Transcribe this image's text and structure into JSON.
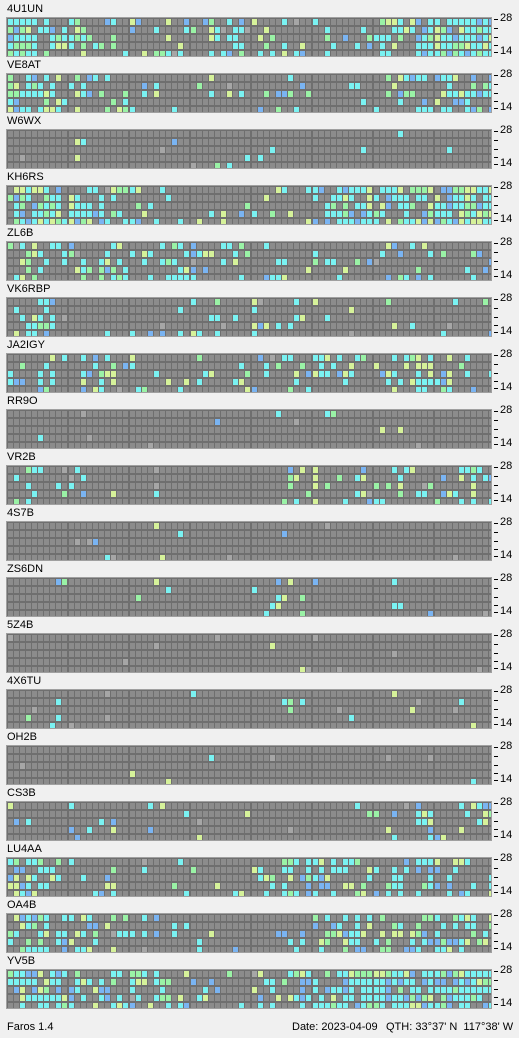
{
  "scale": {
    "top_label": "28",
    "bottom_label": "14"
  },
  "colors": {
    "cell": "#8c8c8c",
    "cyan": "#7af2f2",
    "blue": "#7ab4f2",
    "green": "#9af2a6",
    "yellow": "#d6f29a",
    "gray": "#a6a6a6"
  },
  "stations": [
    {
      "call": "4U1UN",
      "activity": [
        0.95,
        0.55,
        0.5,
        0.4,
        0.25,
        0.3,
        0.2,
        0.3,
        0.35,
        0.3,
        0.25,
        0.3,
        0.35,
        0.4,
        0.5,
        0.85,
        0.95,
        1.0
      ]
    },
    {
      "call": "VE8AT",
      "activity": [
        0.5,
        0.55,
        0.4,
        0.3,
        0.2,
        0.1,
        0.1,
        0.1,
        0.1,
        0.05,
        0.1,
        0.1,
        0.15,
        0.2,
        0.2,
        0.3,
        0.5,
        0.6
      ]
    },
    {
      "call": "W6WX",
      "activity": [
        0.03,
        0.03,
        0.05,
        0.03,
        0.03,
        0.02,
        0.02,
        0.03,
        0.05,
        0.03,
        0.02,
        0.02,
        0.03,
        0.03,
        0.03,
        0.02,
        0.02,
        0.02
      ]
    },
    {
      "call": "KH6RS",
      "activity": [
        0.8,
        0.85,
        0.7,
        0.5,
        0.3,
        0.2,
        0.15,
        0.15,
        0.15,
        0.15,
        0.2,
        0.4,
        0.75,
        0.85,
        0.8,
        0.85,
        0.9,
        0.85
      ]
    },
    {
      "call": "ZL6B",
      "activity": [
        0.4,
        0.35,
        0.55,
        0.45,
        0.4,
        0.25,
        0.45,
        0.35,
        0.3,
        0.25,
        0.2,
        0.15,
        0.15,
        0.1,
        0.25,
        0.2,
        0.15,
        0.1
      ]
    },
    {
      "call": "VK6RBP",
      "activity": [
        0.3,
        0.35,
        0.2,
        0.1,
        0.1,
        0.15,
        0.2,
        0.25,
        0.2,
        0.2,
        0.25,
        0.2,
        0.1,
        0.05,
        0.05,
        0.05,
        0.05,
        0.05
      ]
    },
    {
      "call": "JA2IGY",
      "activity": [
        0.3,
        0.35,
        0.3,
        0.25,
        0.15,
        0.1,
        0.15,
        0.15,
        0.15,
        0.2,
        0.35,
        0.3,
        0.35,
        0.35,
        0.3,
        0.55,
        0.4,
        0.2
      ]
    },
    {
      "call": "RR9O",
      "activity": [
        0.02,
        0.02,
        0.03,
        0.02,
        0.02,
        0.02,
        0.03,
        0.02,
        0.03,
        0.03,
        0.02,
        0.04,
        0.02,
        0.02,
        0.02,
        0.02,
        0.02,
        0.02
      ]
    },
    {
      "call": "VR2B",
      "activity": [
        0.4,
        0.2,
        0.25,
        0.1,
        0.05,
        0.05,
        0.05,
        0.05,
        0.05,
        0.05,
        0.2,
        0.35,
        0.35,
        0.3,
        0.3,
        0.2,
        0.3,
        0.45
      ]
    },
    {
      "call": "4S7B",
      "activity": [
        0.01,
        0.01,
        0.01,
        0.01,
        0.01,
        0.01,
        0.01,
        0.01,
        0.01,
        0.03,
        0.01,
        0.01,
        0.01,
        0.01,
        0.01,
        0.01,
        0.01,
        0.01
      ]
    },
    {
      "call": "ZS6DN",
      "activity": [
        0.02,
        0.02,
        0.02,
        0.02,
        0.02,
        0.02,
        0.02,
        0.02,
        0.02,
        0.25,
        0.3,
        0.1,
        0.02,
        0.02,
        0.03,
        0.02,
        0.02,
        0.02
      ]
    },
    {
      "call": "5Z4B",
      "activity": [
        0.01,
        0.01,
        0.01,
        0.01,
        0.01,
        0.01,
        0.01,
        0.01,
        0.01,
        0.03,
        0.02,
        0.01,
        0.01,
        0.01,
        0.01,
        0.01,
        0.01,
        0.01
      ]
    },
    {
      "call": "4X6TU",
      "activity": [
        0.05,
        0.02,
        0.02,
        0.02,
        0.02,
        0.02,
        0.02,
        0.02,
        0.02,
        0.03,
        0.15,
        0.03,
        0.02,
        0.02,
        0.02,
        0.02,
        0.02,
        0.02
      ]
    },
    {
      "call": "OH2B",
      "activity": [
        0.01,
        0.01,
        0.01,
        0.01,
        0.01,
        0.01,
        0.01,
        0.01,
        0.01,
        0.01,
        0.01,
        0.01,
        0.01,
        0.01,
        0.01,
        0.01,
        0.01,
        0.01
      ]
    },
    {
      "call": "CS3B",
      "activity": [
        0.05,
        0.1,
        0.1,
        0.1,
        0.05,
        0.05,
        0.02,
        0.02,
        0.02,
        0.02,
        0.03,
        0.02,
        0.02,
        0.1,
        0.3,
        0.35,
        0.35,
        0.4
      ]
    },
    {
      "call": "LU4AA",
      "activity": [
        0.6,
        0.55,
        0.3,
        0.2,
        0.15,
        0.05,
        0.05,
        0.05,
        0.05,
        0.15,
        0.45,
        0.5,
        0.55,
        0.4,
        0.45,
        0.5,
        0.55,
        0.5
      ]
    },
    {
      "call": "OA4B",
      "activity": [
        0.55,
        0.6,
        0.5,
        0.35,
        0.25,
        0.2,
        0.15,
        0.05,
        0.05,
        0.1,
        0.35,
        0.45,
        0.5,
        0.45,
        0.4,
        0.5,
        0.55,
        0.55
      ]
    },
    {
      "call": "YV5B",
      "activity": [
        0.7,
        0.65,
        0.55,
        0.55,
        0.55,
        0.4,
        0.25,
        0.15,
        0.15,
        0.35,
        0.6,
        0.65,
        0.75,
        0.85,
        0.9,
        0.85,
        0.85,
        0.85
      ]
    }
  ],
  "status": {
    "app_name": "Faros 1.4",
    "date": "Date: 2023-04-09",
    "qth": "QTH: 33°37' N  117°38' W"
  }
}
